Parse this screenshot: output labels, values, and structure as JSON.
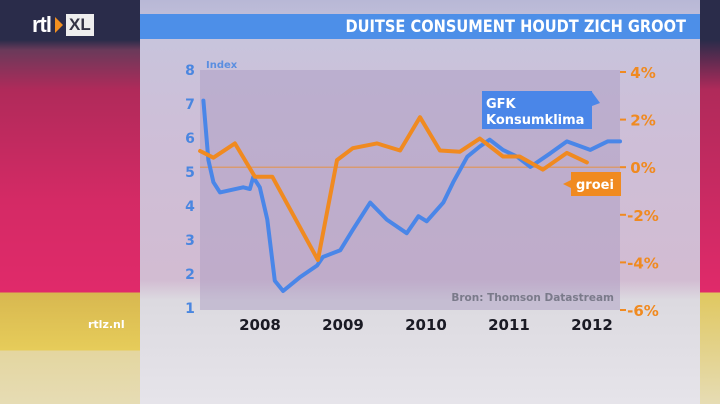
{
  "header": {
    "logo": "rtl XL",
    "title": "DUITSE CONSUMENT HOUDT ZICH GROOT"
  },
  "footer": {
    "site": "rtlz.nl"
  },
  "colors": {
    "gfk": "#4a86e8",
    "groei": "#f08a20",
    "titlebar": "#4d8fe8"
  },
  "chart_data": {
    "type": "line",
    "title": "DUITSE CONSUMENT HOUDT ZICH GROOT",
    "ylabel_left": "Index",
    "source": "Bron: Thomson Datastream",
    "x_ticks": [
      "2008",
      "2009",
      "2010",
      "2011",
      "2012"
    ],
    "xlim": [
      2007.3,
      2012.4
    ],
    "y_left": {
      "lim": [
        1,
        8
      ],
      "ticks": [
        "1",
        "2",
        "3",
        "4",
        "5",
        "6",
        "7",
        "8"
      ]
    },
    "y_right": {
      "lim": [
        -6,
        4
      ],
      "ticks": [
        "-6%",
        "-4%",
        "-2%",
        "0%",
        "2%",
        "4%"
      ]
    },
    "reference_line": {
      "axis": "right",
      "value": 0
    },
    "series": [
      {
        "name": "GFK Konsumklima",
        "axis": "left",
        "color": "#4a86e8",
        "x": [
          2007.33,
          2007.39,
          2007.45,
          2007.53,
          2007.81,
          2007.89,
          2007.93,
          2008.01,
          2008.1,
          2008.19,
          2008.29,
          2008.49,
          2008.7,
          2008.77,
          2008.98,
          2009.13,
          2009.34,
          2009.54,
          2009.78,
          2009.92,
          2010.02,
          2010.22,
          2010.34,
          2010.51,
          2010.66,
          2010.78,
          2010.94,
          2011.11,
          2011.27,
          2011.51,
          2011.71,
          2011.99,
          2012.2,
          2012.35
        ],
        "y": [
          7.1,
          5.35,
          4.7,
          4.4,
          4.55,
          4.5,
          4.85,
          4.55,
          3.6,
          1.8,
          1.5,
          1.9,
          2.25,
          2.5,
          2.7,
          3.3,
          4.1,
          3.6,
          3.2,
          3.7,
          3.55,
          4.1,
          4.7,
          5.45,
          5.75,
          5.95,
          5.65,
          5.45,
          5.15,
          5.55,
          5.9,
          5.65,
          5.9,
          5.9
        ]
      },
      {
        "name": "groei",
        "axis": "right",
        "color": "#f08a20",
        "x": [
          2007.29,
          2007.45,
          2007.71,
          2007.95,
          2008.16,
          2008.71,
          2008.94,
          2009.13,
          2009.42,
          2009.7,
          2009.94,
          2010.18,
          2010.42,
          2010.66,
          2010.94,
          2011.14,
          2011.42,
          2011.71,
          2011.95
        ],
        "y": [
          0.68,
          0.4,
          1.0,
          -0.4,
          -0.4,
          -3.9,
          0.3,
          0.8,
          1.0,
          0.7,
          2.1,
          0.7,
          0.65,
          1.2,
          0.45,
          0.45,
          -0.1,
          0.6,
          0.2
        ]
      }
    ],
    "grid": false,
    "legend": "inline callouts"
  }
}
